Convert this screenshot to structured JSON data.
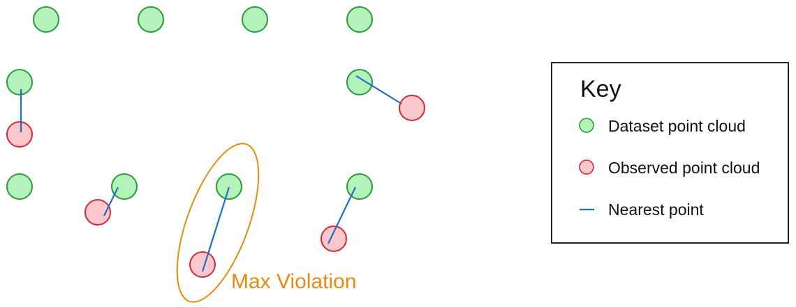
{
  "annotation": {
    "label": "Max Violation"
  },
  "legend": {
    "title": "Key",
    "items": [
      {
        "label": "Dataset point cloud",
        "marker": "green-circle"
      },
      {
        "label": "Observed point cloud",
        "marker": "red-circle"
      },
      {
        "label": "Nearest point",
        "marker": "blue-line"
      }
    ]
  },
  "colors": {
    "dataset_fill": "#b4f2bc",
    "dataset_stroke": "#2a9a3a",
    "observed_fill": "#fdc8cd",
    "observed_stroke": "#d42a2f",
    "nearest_line": "#1f6fc0",
    "violation": "#e88a10"
  }
}
